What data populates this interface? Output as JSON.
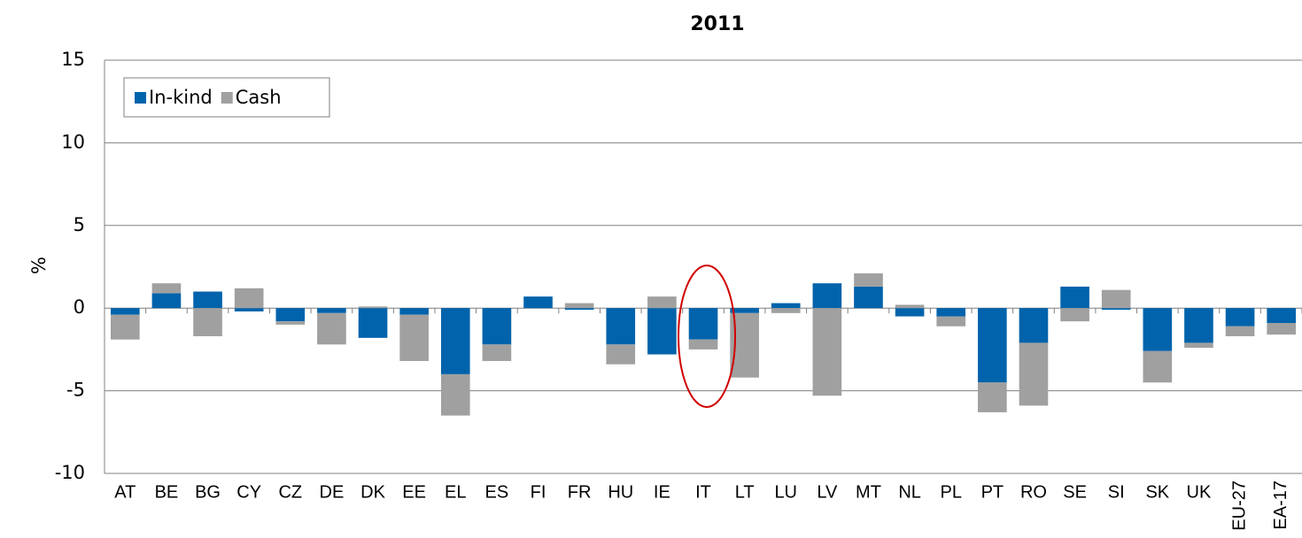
{
  "chart_data": {
    "type": "bar",
    "stacked": true,
    "title": "2011",
    "y_label": "%",
    "categories": [
      "AT",
      "BE",
      "BG",
      "CY",
      "CZ",
      "DE",
      "DK",
      "EE",
      "EL",
      "ES",
      "FI",
      "FR",
      "HU",
      "IE",
      "IT",
      "LT",
      "LU",
      "LV",
      "MT",
      "NL",
      "PL",
      "PT",
      "RO",
      "SE",
      "SI",
      "SK",
      "UK",
      "EU-27",
      "EA-17"
    ],
    "series": [
      {
        "name": "In-kind",
        "color": "#0063ab",
        "values": [
          -0.4,
          0.9,
          1.0,
          -0.2,
          -0.8,
          -0.3,
          -1.8,
          -0.4,
          -4.0,
          -2.2,
          0.7,
          -0.1,
          -2.2,
          -2.8,
          -1.9,
          -0.3,
          0.3,
          1.5,
          1.3,
          -0.5,
          -0.5,
          -4.5,
          -2.1,
          1.3,
          -0.1,
          -2.6,
          -2.1,
          -1.1,
          -0.9
        ]
      },
      {
        "name": "Cash",
        "color": "#a0a0a0",
        "values": [
          -1.5,
          0.6,
          -1.7,
          1.2,
          -0.2,
          -1.9,
          0.1,
          -2.8,
          -2.5,
          -1.0,
          0,
          0.3,
          -1.2,
          0.7,
          -0.6,
          -3.9,
          -0.3,
          -5.3,
          0.8,
          0.2,
          -0.6,
          -1.8,
          -3.8,
          -0.8,
          1.1,
          -1.9,
          -0.3,
          -0.6,
          -0.7
        ]
      }
    ],
    "ylim": [
      -10,
      15
    ],
    "yticks": [
      -10,
      -5,
      0,
      5,
      10,
      15
    ],
    "grid": true,
    "legend": "upper left"
  }
}
